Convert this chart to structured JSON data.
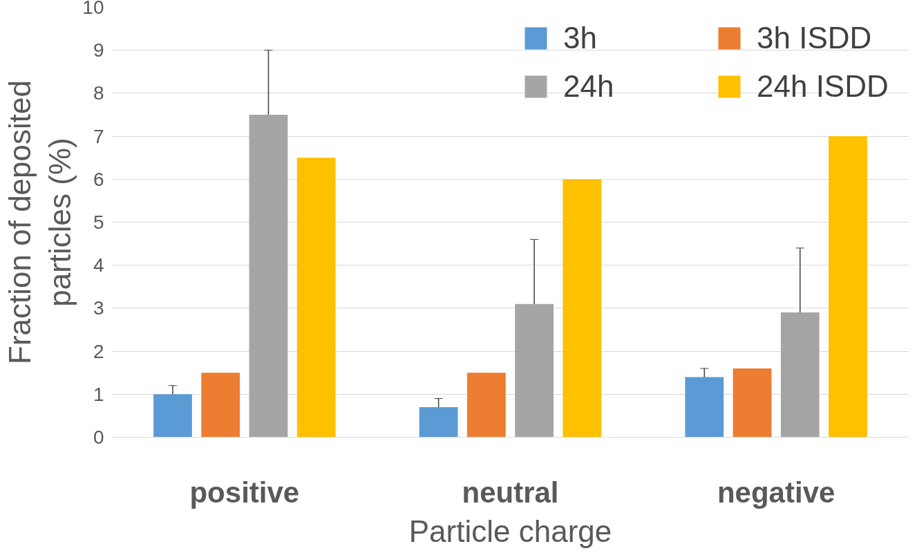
{
  "chart_data": {
    "type": "bar",
    "xlabel": "Particle charge",
    "ylabel": "Fraction of deposited particles (%)",
    "categories": [
      "positive",
      "neutral",
      "negative"
    ],
    "series": [
      {
        "name": "3h",
        "color": "#5b9bd5",
        "values": [
          1.0,
          0.7,
          1.4
        ],
        "errors": [
          0.2,
          0.2,
          0.2
        ]
      },
      {
        "name": "3h ISDD",
        "color": "#ed7d31",
        "values": [
          1.5,
          1.5,
          1.6
        ]
      },
      {
        "name": "24h",
        "color": "#a5a5a5",
        "values": [
          7.5,
          3.1,
          2.9
        ],
        "errors": [
          1.5,
          1.5,
          1.5
        ]
      },
      {
        "name": "24h ISDD",
        "color": "#ffc000",
        "values": [
          6.5,
          6.0,
          7.0
        ]
      }
    ],
    "ylim": [
      0,
      10
    ],
    "yticks": [
      0,
      1,
      2,
      3,
      4,
      5,
      6,
      7,
      8,
      9,
      10
    ],
    "grid": "y",
    "legend": "top right"
  }
}
